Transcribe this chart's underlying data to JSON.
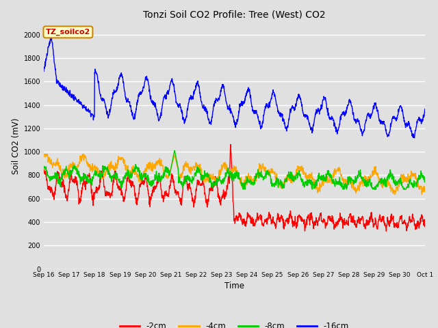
{
  "title": "Tonzi Soil CO2 Profile: Tree (West) CO2",
  "xlabel": "Time",
  "ylabel": "Soil CO2 (mV)",
  "ylim": [
    0,
    2100
  ],
  "yticks": [
    0,
    200,
    400,
    600,
    800,
    1000,
    1200,
    1400,
    1600,
    1800,
    2000
  ],
  "bg_color": "#e0e0e0",
  "plot_bg": "#e0e0e0",
  "grid_color": "#ffffff",
  "line_colors": {
    "-2cm": "#ff0000",
    "-4cm": "#ffa500",
    "-8cm": "#00cc00",
    "-16cm": "#0000ff"
  },
  "annotation_text": "TZ_soilco2",
  "annotation_bg": "#ffffcc",
  "annotation_border": "#cc8800",
  "tick_labels": [
    "Sep 16",
    "Sep 17",
    "Sep 18",
    "Sep 19",
    "Sep 20",
    "Sep 21",
    "Sep 22",
    "Sep 23",
    "Sep 24",
    "Sep 25",
    "Sep 26",
    "Sep 27",
    "Sep 28",
    "Sep 29",
    "Sep 30",
    "Oct 1"
  ],
  "figsize": [
    6.4,
    4.8
  ],
  "dpi": 100
}
